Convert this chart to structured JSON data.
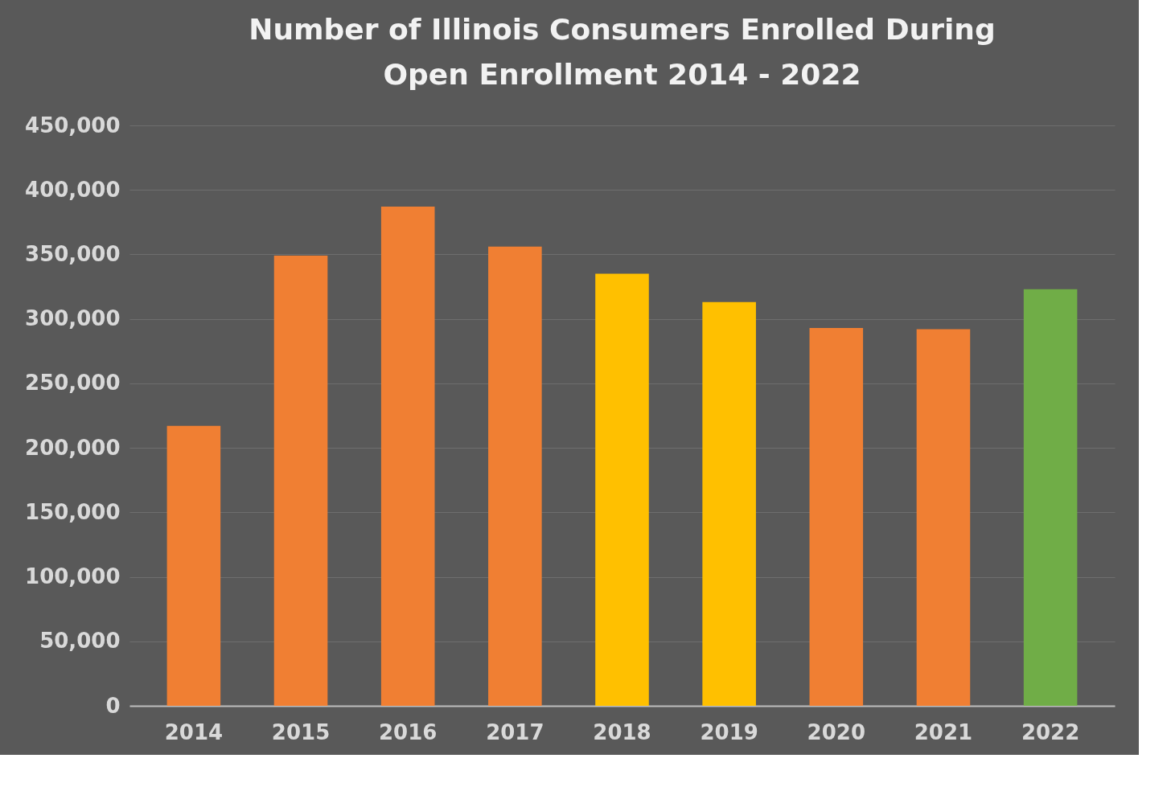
{
  "chart_data": {
    "type": "bar",
    "title": [
      "Number of Illinois Consumers Enrolled During",
      "Open Enrollment 2014 - 2022"
    ],
    "categories": [
      "2014",
      "2015",
      "2016",
      "2017",
      "2018",
      "2019",
      "2020",
      "2021",
      "2022"
    ],
    "values": [
      217000,
      349000,
      387000,
      356000,
      335000,
      313000,
      293000,
      292000,
      323000
    ],
    "colors": [
      "#f07f33",
      "#f07f33",
      "#f07f33",
      "#f07f33",
      "#ffc000",
      "#ffc000",
      "#f07f33",
      "#f07f33",
      "#70ad47"
    ],
    "ylim": [
      0,
      450000
    ],
    "yticks": [
      0,
      {
        "value": 50000,
        "label": "50,000"
      },
      {
        "value": 100000,
        "label": "100,000"
      },
      {
        "value": 150000,
        "label": "150,000"
      },
      {
        "value": 200000,
        "label": "200,000"
      },
      {
        "value": 250000,
        "label": "250,000"
      },
      {
        "value": 300000,
        "label": "300,000"
      },
      {
        "value": 350000,
        "label": "350,000"
      },
      {
        "value": 400000,
        "label": "400,000"
      },
      {
        "value": 450000,
        "label": "450,000"
      }
    ],
    "grid": "y"
  }
}
